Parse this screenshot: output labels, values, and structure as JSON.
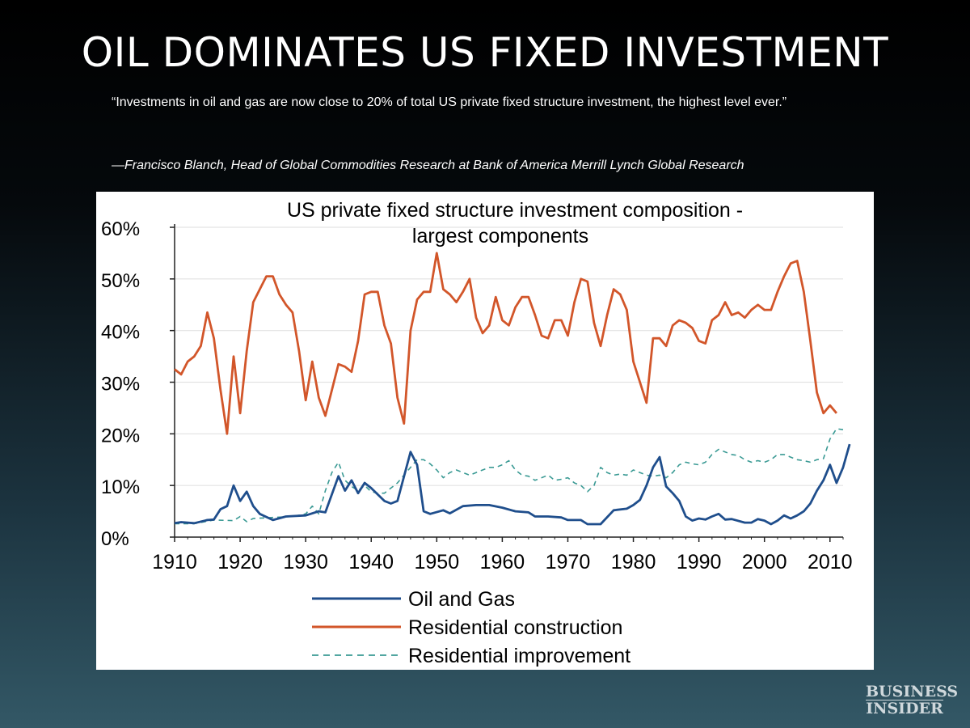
{
  "slide": {
    "title": "OIL DOMINATES US FIXED INVESTMENT",
    "quote": "“Investments in oil and gas are now close to 20% of total US private fixed structure investment, the highest level ever.”",
    "attribution": "—Francisco Blanch, Head of Global Commodities Research at Bank of America Merrill Lynch Global Research"
  },
  "brand": {
    "line1": "BUSINESS",
    "line2": "INSIDER"
  },
  "chart_data": {
    "type": "line",
    "title_lines": [
      "US private fixed structure investment  composition -",
      "largest components"
    ],
    "xlim": [
      1910,
      2012
    ],
    "ylim": [
      0,
      60
    ],
    "x_ticks": [
      1910,
      1920,
      1930,
      1940,
      1950,
      1960,
      1970,
      1980,
      1990,
      2000,
      2010
    ],
    "y_ticks": [
      {
        "value": 0,
        "label": "0%"
      },
      {
        "value": 10,
        "label": "10%"
      },
      {
        "value": 20,
        "label": "20%"
      },
      {
        "value": 30,
        "label": "30%"
      },
      {
        "value": 40,
        "label": "40%"
      },
      {
        "value": 50,
        "label": "50%"
      },
      {
        "value": 60,
        "label": "60%"
      }
    ],
    "grid": true,
    "legend_position": "bottom",
    "series": [
      {
        "name": "Oil and Gas",
        "color": "#1f4e8c",
        "style": "solid",
        "points": [
          [
            1910,
            2.7
          ],
          [
            1911,
            2.9
          ],
          [
            1913,
            2.7
          ],
          [
            1915,
            3.3
          ],
          [
            1916,
            3.4
          ],
          [
            1917,
            5.4
          ],
          [
            1918,
            6
          ],
          [
            1919,
            10
          ],
          [
            1920,
            7
          ],
          [
            1921,
            8.8
          ],
          [
            1922,
            6
          ],
          [
            1923,
            4.5
          ],
          [
            1925,
            3.3
          ],
          [
            1927,
            4
          ],
          [
            1930,
            4.2
          ],
          [
            1932,
            5
          ],
          [
            1933,
            4.8
          ],
          [
            1935,
            11.8
          ],
          [
            1936,
            9
          ],
          [
            1937,
            11
          ],
          [
            1938,
            8.5
          ],
          [
            1939,
            10.5
          ],
          [
            1940,
            9.5
          ],
          [
            1942,
            7
          ],
          [
            1943,
            6.5
          ],
          [
            1944,
            7
          ],
          [
            1946,
            16.5
          ],
          [
            1947,
            14
          ],
          [
            1948,
            5
          ],
          [
            1949,
            4.5
          ],
          [
            1951,
            5.2
          ],
          [
            1952,
            4.6
          ],
          [
            1954,
            6
          ],
          [
            1956,
            6.2
          ],
          [
            1958,
            6.2
          ],
          [
            1960,
            5.7
          ],
          [
            1962,
            5
          ],
          [
            1964,
            4.8
          ],
          [
            1965,
            4
          ],
          [
            1967,
            4
          ],
          [
            1969,
            3.8
          ],
          [
            1970,
            3.3
          ],
          [
            1972,
            3.3
          ],
          [
            1973,
            2.5
          ],
          [
            1975,
            2.5
          ],
          [
            1977,
            5.2
          ],
          [
            1979,
            5.5
          ],
          [
            1980,
            6.2
          ],
          [
            1981,
            7.2
          ],
          [
            1982,
            10
          ],
          [
            1983,
            13.5
          ],
          [
            1984,
            15.5
          ],
          [
            1985,
            9.8
          ],
          [
            1986,
            8.5
          ],
          [
            1987,
            7
          ],
          [
            1988,
            4
          ],
          [
            1989,
            3.2
          ],
          [
            1990,
            3.6
          ],
          [
            1991,
            3.4
          ],
          [
            1992,
            4
          ],
          [
            1993,
            4.5
          ],
          [
            1994,
            3.4
          ],
          [
            1995,
            3.5
          ],
          [
            1997,
            2.8
          ],
          [
            1998,
            2.8
          ],
          [
            1999,
            3.5
          ],
          [
            2000,
            3.2
          ],
          [
            2001,
            2.5
          ],
          [
            2002,
            3.2
          ],
          [
            2003,
            4.2
          ],
          [
            2004,
            3.6
          ],
          [
            2005,
            4.2
          ],
          [
            2006,
            5
          ],
          [
            2007,
            6.5
          ],
          [
            2008,
            9
          ],
          [
            2009,
            11
          ],
          [
            2010,
            14
          ],
          [
            2011,
            10.5
          ],
          [
            2012,
            13.5
          ],
          [
            2013,
            18
          ]
        ]
      },
      {
        "name": "Residential construction",
        "color": "#d2562a",
        "style": "solid",
        "points": [
          [
            1910,
            32.5
          ],
          [
            1911,
            31.5
          ],
          [
            1912,
            34
          ],
          [
            1913,
            35
          ],
          [
            1914,
            37
          ],
          [
            1915,
            43.5
          ],
          [
            1916,
            38.5
          ],
          [
            1917,
            28.5
          ],
          [
            1918,
            20
          ],
          [
            1919,
            35
          ],
          [
            1920,
            24
          ],
          [
            1921,
            36
          ],
          [
            1922,
            45.5
          ],
          [
            1923,
            48
          ],
          [
            1924,
            50.5
          ],
          [
            1925,
            50.5
          ],
          [
            1926,
            47
          ],
          [
            1927,
            45
          ],
          [
            1928,
            43.5
          ],
          [
            1929,
            36
          ],
          [
            1930,
            26.5
          ],
          [
            1931,
            34
          ],
          [
            1932,
            27
          ],
          [
            1933,
            23.5
          ],
          [
            1934,
            28.5
          ],
          [
            1935,
            33.5
          ],
          [
            1936,
            33
          ],
          [
            1937,
            32
          ],
          [
            1938,
            38
          ],
          [
            1939,
            47
          ],
          [
            1940,
            47.5
          ],
          [
            1941,
            47.5
          ],
          [
            1942,
            41
          ],
          [
            1943,
            37.5
          ],
          [
            1944,
            27
          ],
          [
            1945,
            22
          ],
          [
            1946,
            40
          ],
          [
            1947,
            46
          ],
          [
            1948,
            47.5
          ],
          [
            1949,
            47.5
          ],
          [
            1950,
            55
          ],
          [
            1951,
            48
          ],
          [
            1952,
            47
          ],
          [
            1953,
            45.5
          ],
          [
            1954,
            47.5
          ],
          [
            1955,
            50
          ],
          [
            1956,
            42.5
          ],
          [
            1957,
            39.5
          ],
          [
            1958,
            41
          ],
          [
            1959,
            46.5
          ],
          [
            1960,
            42
          ],
          [
            1961,
            41
          ],
          [
            1962,
            44.5
          ],
          [
            1963,
            46.5
          ],
          [
            1964,
            46.5
          ],
          [
            1965,
            43
          ],
          [
            1966,
            39
          ],
          [
            1967,
            38.5
          ],
          [
            1968,
            42
          ],
          [
            1969,
            42
          ],
          [
            1970,
            39
          ],
          [
            1971,
            45.5
          ],
          [
            1972,
            50
          ],
          [
            1973,
            49.5
          ],
          [
            1974,
            41.5
          ],
          [
            1975,
            37
          ],
          [
            1976,
            43
          ],
          [
            1977,
            48
          ],
          [
            1978,
            47
          ],
          [
            1979,
            44
          ],
          [
            1980,
            34
          ],
          [
            1981,
            30
          ],
          [
            1982,
            26
          ],
          [
            1983,
            38.5
          ],
          [
            1984,
            38.5
          ],
          [
            1985,
            37
          ],
          [
            1986,
            41
          ],
          [
            1987,
            42
          ],
          [
            1988,
            41.5
          ],
          [
            1989,
            40.5
          ],
          [
            1990,
            38
          ],
          [
            1991,
            37.5
          ],
          [
            1992,
            42
          ],
          [
            1993,
            43
          ],
          [
            1994,
            45.5
          ],
          [
            1995,
            43
          ],
          [
            1996,
            43.5
          ],
          [
            1997,
            42.5
          ],
          [
            1998,
            44
          ],
          [
            1999,
            45
          ],
          [
            2000,
            44
          ],
          [
            2001,
            44
          ],
          [
            2002,
            47.5
          ],
          [
            2003,
            50.5
          ],
          [
            2004,
            53
          ],
          [
            2005,
            53.5
          ],
          [
            2006,
            47.5
          ],
          [
            2007,
            38
          ],
          [
            2008,
            28
          ],
          [
            2009,
            24
          ],
          [
            2010,
            25.5
          ],
          [
            2011,
            24
          ]
        ]
      },
      {
        "name": "Residential improvement",
        "color": "#3a9a94",
        "style": "dashed",
        "points": [
          [
            1910,
            2.6
          ],
          [
            1913,
            2.6
          ],
          [
            1916,
            3.3
          ],
          [
            1919,
            3.2
          ],
          [
            1920,
            4
          ],
          [
            1921,
            3
          ],
          [
            1922,
            3.6
          ],
          [
            1925,
            3.8
          ],
          [
            1928,
            4
          ],
          [
            1930,
            4.5
          ],
          [
            1931,
            6
          ],
          [
            1932,
            4.5
          ],
          [
            1933,
            9
          ],
          [
            1934,
            12.5
          ],
          [
            1935,
            14.5
          ],
          [
            1936,
            11
          ],
          [
            1937,
            9.8
          ],
          [
            1938,
            9
          ],
          [
            1939,
            10
          ],
          [
            1940,
            8.8
          ],
          [
            1941,
            8.5
          ],
          [
            1942,
            8.5
          ],
          [
            1943,
            9.5
          ],
          [
            1944,
            10.5
          ],
          [
            1945,
            12
          ],
          [
            1946,
            13.5
          ],
          [
            1947,
            15
          ],
          [
            1948,
            15
          ],
          [
            1949,
            14.2
          ],
          [
            1950,
            13
          ],
          [
            1951,
            11.5
          ],
          [
            1952,
            12.5
          ],
          [
            1953,
            13
          ],
          [
            1954,
            12.5
          ],
          [
            1955,
            12
          ],
          [
            1956,
            12.5
          ],
          [
            1957,
            13
          ],
          [
            1958,
            13.5
          ],
          [
            1959,
            13.5
          ],
          [
            1960,
            14
          ],
          [
            1961,
            14.8
          ],
          [
            1962,
            13
          ],
          [
            1963,
            12
          ],
          [
            1964,
            11.8
          ],
          [
            1965,
            11
          ],
          [
            1966,
            11.5
          ],
          [
            1967,
            12
          ],
          [
            1968,
            11
          ],
          [
            1969,
            11.2
          ],
          [
            1970,
            11.5
          ],
          [
            1971,
            10.5
          ],
          [
            1972,
            10
          ],
          [
            1973,
            8.8
          ],
          [
            1974,
            10
          ],
          [
            1975,
            13.5
          ],
          [
            1976,
            12.5
          ],
          [
            1977,
            12
          ],
          [
            1978,
            12.2
          ],
          [
            1979,
            12
          ],
          [
            1980,
            13
          ],
          [
            1981,
            12.5
          ],
          [
            1982,
            12
          ],
          [
            1983,
            11.8
          ],
          [
            1984,
            12
          ],
          [
            1985,
            11.5
          ],
          [
            1986,
            12.5
          ],
          [
            1987,
            14
          ],
          [
            1988,
            14.5
          ],
          [
            1989,
            14.2
          ],
          [
            1990,
            14
          ],
          [
            1991,
            14.5
          ],
          [
            1992,
            16
          ],
          [
            1993,
            17
          ],
          [
            1994,
            16.5
          ],
          [
            1995,
            16
          ],
          [
            1996,
            15.8
          ],
          [
            1997,
            15
          ],
          [
            1998,
            14.5
          ],
          [
            1999,
            14.8
          ],
          [
            2000,
            14.5
          ],
          [
            2001,
            15
          ],
          [
            2002,
            16
          ],
          [
            2003,
            16
          ],
          [
            2004,
            15.5
          ],
          [
            2005,
            15
          ],
          [
            2006,
            14.8
          ],
          [
            2007,
            14.5
          ],
          [
            2008,
            15
          ],
          [
            2009,
            15.2
          ],
          [
            2010,
            19
          ],
          [
            2011,
            21
          ],
          [
            2012,
            20.8
          ]
        ]
      }
    ]
  }
}
